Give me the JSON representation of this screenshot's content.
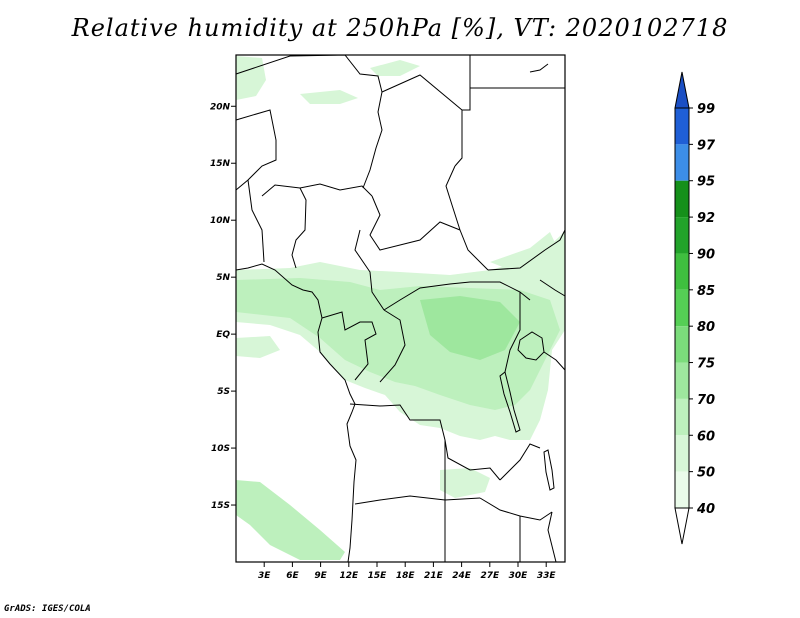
{
  "title": "Relative humidity at 250hPa [%], VT: 2020102718",
  "credit": "GrADS: IGES/COLA",
  "map": {
    "lat_ticks": [
      "20N",
      "15N",
      "10N",
      "5N",
      "EQ",
      "5S",
      "10S",
      "15S"
    ],
    "lon_ticks": [
      "3E",
      "6E",
      "9E",
      "12E",
      "15E",
      "18E",
      "21E",
      "24E",
      "27E",
      "30E",
      "33E"
    ],
    "lon_range": [
      0,
      35
    ],
    "lat_range": [
      -20,
      24.5
    ]
  },
  "colorbar": {
    "levels": [
      "99",
      "97",
      "95",
      "92",
      "90",
      "85",
      "80",
      "75",
      "70",
      "60",
      "50",
      "40"
    ],
    "colors": [
      "#1f5fd6",
      "#3c8ee8",
      "#15901a",
      "#22a32a",
      "#3fbf3f",
      "#55cf55",
      "#7bdc7b",
      "#9ee79e",
      "#bdf0bd",
      "#d7f6d7",
      "#eafbea",
      "#ffffff"
    ],
    "top_color": "#1b4fc4"
  },
  "humidity_colors": {
    "light": "#d7f6d7",
    "mid": "#bdf0bd",
    "strong": "#9ee79e"
  }
}
